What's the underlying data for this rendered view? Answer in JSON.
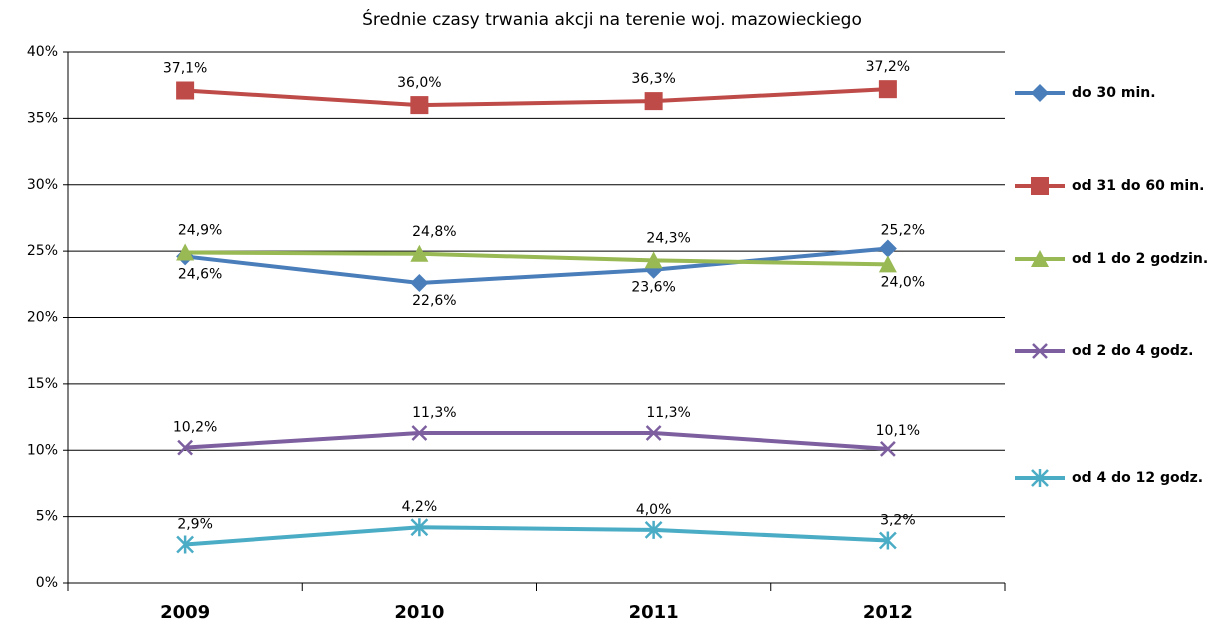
{
  "chart_data": {
    "type": "line",
    "title": "Średnie czasy trwania akcji na terenie woj. mazowieckiego",
    "categories": [
      "2009",
      "2010",
      "2011",
      "2012"
    ],
    "series": [
      {
        "name": "do 30 min.",
        "color": "#4a7ebb",
        "marker": "diamond",
        "values": [
          24.6,
          22.6,
          23.6,
          25.2
        ],
        "value_labels": [
          "24,6%",
          "22,6%",
          "23,6%",
          "25,2%"
        ]
      },
      {
        "name": "od 31 do 60 min.",
        "color": "#be4b48",
        "marker": "square",
        "values": [
          37.1,
          36.0,
          36.3,
          37.2
        ],
        "value_labels": [
          "37,1%",
          "36,0%",
          "36,3%",
          "37,2%"
        ]
      },
      {
        "name": "od 1 do 2 godzin.",
        "color": "#98b954",
        "marker": "triangle",
        "values": [
          24.9,
          24.8,
          24.3,
          24.0
        ],
        "value_labels": [
          "24,9%",
          "24,8%",
          "24,3%",
          "24,0%"
        ]
      },
      {
        "name": "od 2 do 4 godz.",
        "color": "#7d5fa0",
        "marker": "x",
        "values": [
          10.2,
          11.3,
          11.3,
          10.1
        ],
        "value_labels": [
          "10,2%",
          "11,3%",
          "11,3%",
          "10,1%"
        ]
      },
      {
        "name": "od 4 do 12 godz.",
        "color": "#4bacc6",
        "marker": "star",
        "values": [
          2.9,
          4.2,
          4.0,
          3.2
        ],
        "value_labels": [
          "2,9%",
          "4,2%",
          "4,0%",
          "3,2%"
        ]
      }
    ],
    "ylim": [
      0,
      40
    ],
    "yticks": [
      {
        "value": 0,
        "label": "0%"
      },
      {
        "value": 5,
        "label": "5%"
      },
      {
        "value": 10,
        "label": "10%"
      },
      {
        "value": 15,
        "label": "15%"
      },
      {
        "value": 20,
        "label": "20%"
      },
      {
        "value": 25,
        "label": "25%"
      },
      {
        "value": 30,
        "label": "30%"
      },
      {
        "value": 35,
        "label": "35%"
      },
      {
        "value": 40,
        "label": "40%"
      }
    ],
    "grid": true,
    "legend": "right"
  }
}
